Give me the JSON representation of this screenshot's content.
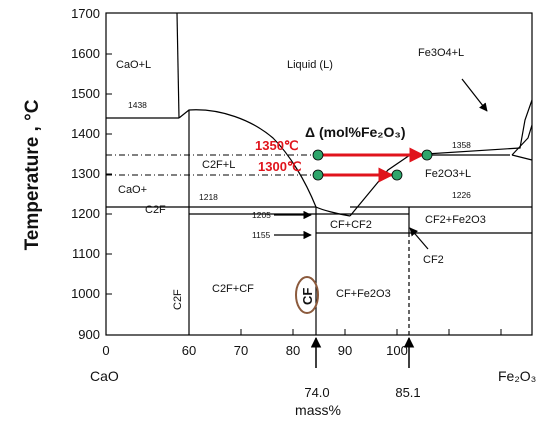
{
  "axes": {
    "y_title": "Temperature , °C",
    "y_ticks": [
      "1700",
      "1600",
      "1500",
      "1400",
      "1300",
      "1200",
      "1100",
      "1000",
      "900"
    ],
    "x_ticks": [
      "0",
      "60",
      "70",
      "80",
      "90",
      "100"
    ],
    "x_left_label": "CaO",
    "x_right_label": "Fe₂O₃",
    "x_title": "mass%"
  },
  "regions": {
    "cao_l": "CaO+L",
    "liquid": "Liquid (L)",
    "fe3o4_l": "Fe3O4+L",
    "c2f_l": "C2F+L",
    "cao_plus": "CaO+",
    "c2f": "C2F",
    "fe2o3_l": "Fe2O3+L",
    "cf_cf2": "CF+CF2",
    "cf2_fe2o3": "CF2+Fe2O3",
    "cf2": "CF2",
    "c2f_vertical": "C2F",
    "c2f_cf": "C2F+CF",
    "cf_circled": "CF",
    "cf_fe2o3": "CF+Fe2O3"
  },
  "temperatures": {
    "t1438": "1438",
    "t1358": "1358",
    "t1218": "1218",
    "t1226": "1226",
    "t1205": "1205",
    "t1155": "1155"
  },
  "annotations": {
    "delta": "Δ (mol%Fe₂O₃)",
    "t1350": "1350℃",
    "t1300": "1300℃",
    "comp_740": "74.0",
    "comp_851": "85.1"
  },
  "colors": {
    "red": "#e0141c",
    "green": "#2ea56b",
    "circle": "#8b5a3c"
  }
}
